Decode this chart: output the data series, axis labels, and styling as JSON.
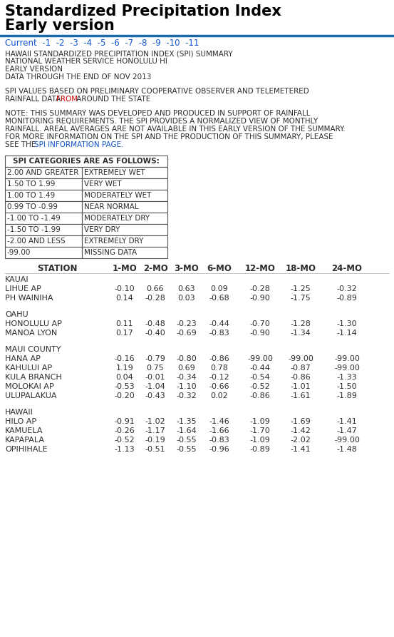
{
  "title_line1": "Standardized Precipitation Index",
  "title_line2": "Early version",
  "header_lines": [
    "HAWAII STANDARDIZED PRECIPITATION INDEX (SPI) SUMMARY",
    "NATIONAL WEATHER SERVICE HONOLULU HI",
    "EARLY VERSION",
    "DATA THROUGH THE END OF NOV 2013"
  ],
  "categories_header": "SPI CATEGORIES ARE AS FOLLOWS:",
  "categories": [
    [
      "2.00 AND GREATER",
      "EXTREMELY WET"
    ],
    [
      "1.50 TO 1.99",
      "VERY WET"
    ],
    [
      "1.00 TO 1.49",
      "MODERATELY WET"
    ],
    [
      "0.99 TO -0.99",
      "NEAR NORMAL"
    ],
    [
      "-1.00 TO -1.49",
      "MODERATELY DRY"
    ],
    [
      "-1.50 TO -1.99",
      "VERY DRY"
    ],
    [
      "-2.00 AND LESS",
      "EXTREMELY DRY"
    ],
    [
      "-99.00",
      "MISSING DATA"
    ]
  ],
  "col_headers": [
    "STATION",
    "1-MO",
    "2-MO",
    "3-MO",
    "6-MO",
    "12-MO",
    "18-MO",
    "24-MO"
  ],
  "groups": [
    {
      "name": "KAUAI",
      "stations": [
        [
          "LIHUE AP",
          "-0.10",
          "0.66",
          "0.63",
          "0.09",
          "-0.28",
          "-1.25",
          "-0.32"
        ],
        [
          "PH WAINIHA",
          "0.14",
          "-0.28",
          "0.03",
          "-0.68",
          "-0.90",
          "-1.75",
          "-0.89"
        ]
      ]
    },
    {
      "name": "OAHU",
      "stations": [
        [
          "HONOLULU AP",
          "0.11",
          "-0.48",
          "-0.23",
          "-0.44",
          "-0.70",
          "-1.28",
          "-1.30"
        ],
        [
          "MANOA LYON",
          "0.17",
          "-0.40",
          "-0.69",
          "-0.83",
          "-0.90",
          "-1.34",
          "-1.14"
        ]
      ]
    },
    {
      "name": "MAUI COUNTY",
      "stations": [
        [
          "HANA AP",
          "-0.16",
          "-0.79",
          "-0.80",
          "-0.86",
          "-99.00",
          "-99.00",
          "-99.00"
        ],
        [
          "KAHULUI AP",
          "1.19",
          "0.75",
          "0.69",
          "0.78",
          "-0.44",
          "-0.87",
          "-99.00"
        ],
        [
          "KULA BRANCH",
          "0.04",
          "-0.01",
          "-0.34",
          "-0.12",
          "-0.54",
          "-0.86",
          "-1.33"
        ],
        [
          "MOLOKAI AP",
          "-0.53",
          "-1.04",
          "-1.10",
          "-0.66",
          "-0.52",
          "-1.01",
          "-1.50"
        ],
        [
          "ULUPALAKUA",
          "-0.20",
          "-0.43",
          "-0.32",
          "0.02",
          "-0.86",
          "-1.61",
          "-1.89"
        ]
      ]
    },
    {
      "name": "HAWAII",
      "stations": [
        [
          "HILO AP",
          "-0.91",
          "-1.02",
          "-1.35",
          "-1.46",
          "-1.09",
          "-1.69",
          "-1.41"
        ],
        [
          "KAMUELA",
          "-0.26",
          "-1.17",
          "-1.64",
          "-1.66",
          "-1.70",
          "-1.42",
          "-1.47"
        ],
        [
          "KAPAPALA",
          "-0.52",
          "-0.19",
          "-0.55",
          "-0.83",
          "-1.09",
          "-2.02",
          "-99.00"
        ],
        [
          "OPIHIHALE",
          "-1.13",
          "-0.51",
          "-0.55",
          "-0.96",
          "-0.89",
          "-1.41",
          "-1.48"
        ]
      ]
    }
  ],
  "title_fontsize": 15,
  "nav_fontsize": 8.5,
  "header_fontsize": 7.5,
  "table_fontsize": 7.5,
  "data_fontsize": 8,
  "col_header_fontsize": 8.5,
  "title_color": "#000000",
  "nav_color": "#1155cc",
  "header_color": "#2c2c2c",
  "dark_color": "#2c2c2c",
  "red_color": "#cc0000",
  "blue_link_color": "#1155cc",
  "table_border_color": "#555555",
  "bg_color": "#ffffff",
  "line_color": "#1a6aab"
}
